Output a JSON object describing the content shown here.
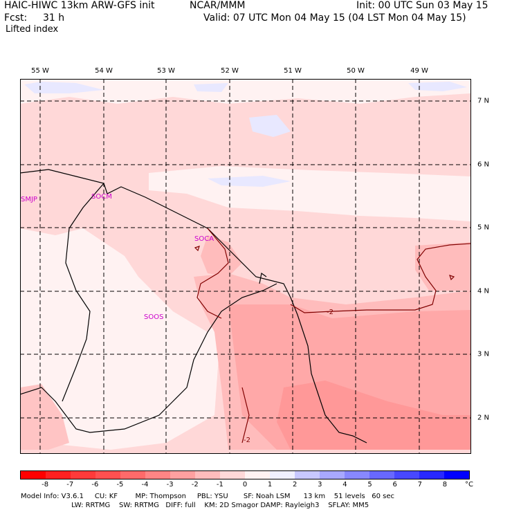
{
  "header": {
    "model": "HAIC-HIWC 13km ARW-GFS init",
    "org": "NCAR/MMM",
    "init": "Init: 00 UTC Sun 03 May 15",
    "fcst_label": "Fcst:",
    "fcst_value": "31 h",
    "valid": "Valid: 07 UTC Mon 04 May 15 (04 LST Mon 04 May 15)",
    "field": "Lifted index"
  },
  "longitude_labels": [
    "55 W",
    "54 W",
    "53 W",
    "52 W",
    "51 W",
    "50 W",
    "49 W"
  ],
  "latitude_labels": [
    "7 N",
    "6 N",
    "5 N",
    "4 N",
    "3 N",
    "2 N"
  ],
  "stations": [
    "SMJP",
    "SOCM",
    "SOCA",
    "SOOS"
  ],
  "contour_labels": [
    "-2",
    "-2"
  ],
  "colorbar": {
    "labels": [
      "-8",
      "-7",
      "-6",
      "-5",
      "-4",
      "-3",
      "-2",
      "-1",
      "0",
      "1",
      "2",
      "3",
      "4",
      "5",
      "6",
      "7",
      "8"
    ],
    "unit": "°C",
    "colors": [
      "#ff0000",
      "#ff2020",
      "#ff3a3a",
      "#ff5050",
      "#ff6a6a",
      "#ff8585",
      "#ffa0a0",
      "#ffbcbc",
      "#ffd8d8",
      "#fff2f2",
      "#f0f0ff",
      "#c8c8ff",
      "#a8a8ff",
      "#8888ff",
      "#6868ff",
      "#4848ff",
      "#2828ff",
      "#0000ff"
    ]
  },
  "footer": {
    "line1": "Model Info: V3.6.1     CU: KF        MP: Thompson     PBL: YSU       SF: Noah LSM      13 km    51 levels   60 sec",
    "line2": "                       LW: RRTMG    SW: RRTMG   DIFF: full    KM: 2D Smagor DAMP: Rayleigh3    SFLAY: MM5"
  }
}
